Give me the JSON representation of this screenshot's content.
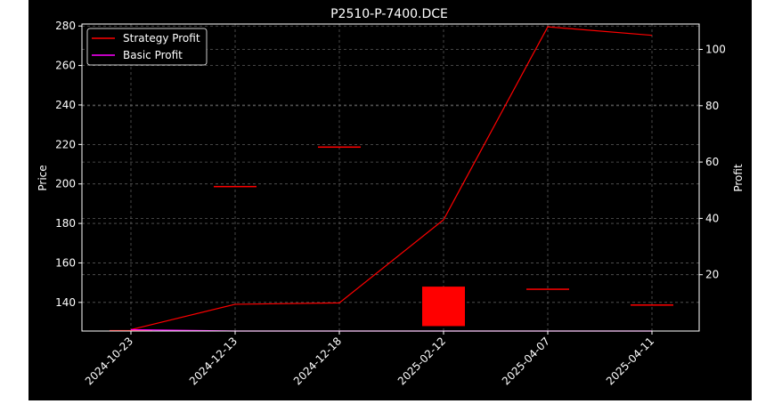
{
  "chart_data": {
    "type": "candlestick+line",
    "title": "P2510-P-7400.DCE",
    "ylabel_left": "Price",
    "ylabel_right": "Profit",
    "categories": [
      "2024-10-23",
      "2024-12-13",
      "2024-12-18",
      "2025-02-12",
      "2025-04-07",
      "2025-04-11"
    ],
    "left_axis": {
      "ylim": [
        125.5,
        281
      ],
      "ticks": [
        140,
        160,
        180,
        200,
        220,
        240,
        260,
        280
      ]
    },
    "right_axis": {
      "ylim": [
        0,
        109
      ],
      "ticks": [
        20,
        40,
        60,
        80,
        100
      ]
    },
    "grid": true,
    "legend": {
      "placement": "top-left",
      "entries": [
        {
          "name": "Strategy Profit",
          "color": "#ff0000"
        },
        {
          "name": "Basic Profit",
          "color": "#ff00ff"
        }
      ]
    },
    "candles": [
      {
        "date": "2024-10-23",
        "open": 126,
        "close": 126,
        "high": 126,
        "low": 126
      },
      {
        "date": "2024-12-13",
        "open": 199,
        "close": 199,
        "high": 199,
        "low": 199
      },
      {
        "date": "2024-12-18",
        "open": 219,
        "close": 219,
        "high": 219,
        "low": 219
      },
      {
        "date": "2025-02-12",
        "open": 148,
        "close": 128,
        "high": 148,
        "low": 128
      },
      {
        "date": "2025-04-07",
        "open": 147,
        "close": 147,
        "high": 147,
        "low": 147
      },
      {
        "date": "2025-04-11",
        "open": 139,
        "close": 139,
        "high": 139,
        "low": 139
      }
    ],
    "series": [
      {
        "name": "Strategy Profit",
        "color": "#ff0000",
        "axis": "right",
        "values": [
          0.5,
          9.5,
          10,
          39.5,
          108,
          105
        ]
      },
      {
        "name": "Basic Profit",
        "color": "#ff00ff",
        "axis": "right",
        "values": [
          0.5,
          0,
          0,
          0,
          0,
          0
        ]
      }
    ],
    "candle_color": "#ff0000"
  }
}
